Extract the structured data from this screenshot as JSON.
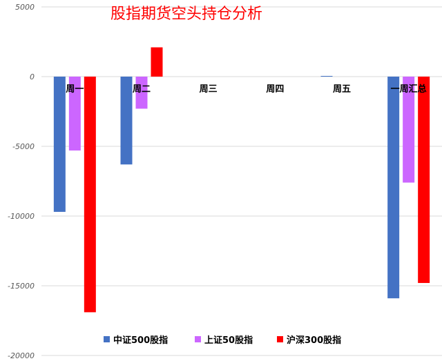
{
  "chart_data": {
    "type": "bar",
    "title": "股指期货空头持仓分析",
    "categories": [
      "周一",
      "周二",
      "周三",
      "周四",
      "周五",
      "一周汇总"
    ],
    "series": [
      {
        "name": "中证500股指",
        "color": "#4472c4",
        "values": [
          -9700,
          -6300,
          0,
          0,
          50,
          -15900
        ]
      },
      {
        "name": "上证50股指",
        "color": "#cc66ff",
        "values": [
          -5300,
          -2300,
          0,
          0,
          0,
          -7600
        ]
      },
      {
        "name": "沪深300股指",
        "color": "#ff0000",
        "values": [
          -16900,
          2100,
          0,
          0,
          0,
          -14800
        ]
      }
    ],
    "ylim": [
      -20000,
      5000
    ],
    "yticks": [
      5000,
      0,
      -5000,
      -10000,
      -15000,
      -20000
    ],
    "ytick_labels": [
      "5000",
      "0",
      "-5000",
      "-10000",
      "-15000",
      "-20000"
    ],
    "grid": true,
    "legend_position": "bottom"
  }
}
